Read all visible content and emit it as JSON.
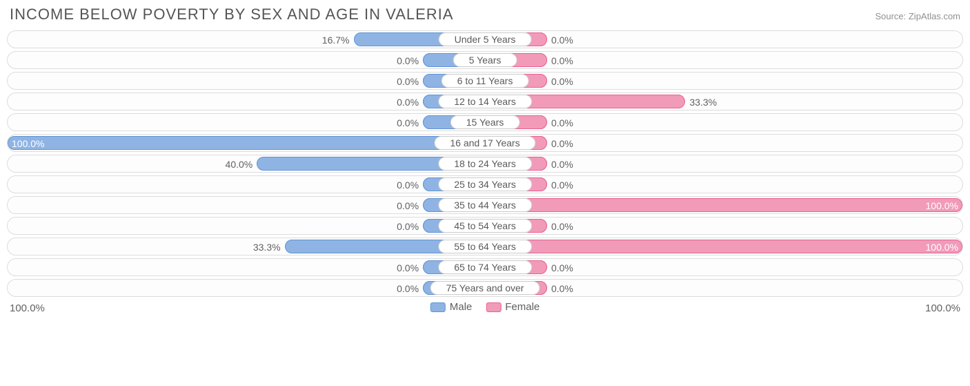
{
  "title": "INCOME BELOW POVERTY BY SEX AND AGE IN VALERIA",
  "source": "Source: ZipAtlas.com",
  "chart": {
    "type": "diverging-bar",
    "male_color": "#8fb4e3",
    "male_border": "#5f93d6",
    "female_color": "#f19bb9",
    "female_border": "#e86193",
    "track_border": "#dcdcdc",
    "track_bg": "#fdfdfd",
    "label_chip_bg": "#ffffff",
    "label_chip_border": "#cccccc",
    "text_color": "#606060",
    "base_pill_pct": 13,
    "axis_min_label": "100.0%",
    "axis_max_label": "100.0%",
    "categories": [
      {
        "label": "Under 5 Years",
        "male": 16.7,
        "female": 0.0
      },
      {
        "label": "5 Years",
        "male": 0.0,
        "female": 0.0
      },
      {
        "label": "6 to 11 Years",
        "male": 0.0,
        "female": 0.0
      },
      {
        "label": "12 to 14 Years",
        "male": 0.0,
        "female": 33.3
      },
      {
        "label": "15 Years",
        "male": 0.0,
        "female": 0.0
      },
      {
        "label": "16 and 17 Years",
        "male": 100.0,
        "female": 0.0
      },
      {
        "label": "18 to 24 Years",
        "male": 40.0,
        "female": 0.0
      },
      {
        "label": "25 to 34 Years",
        "male": 0.0,
        "female": 0.0
      },
      {
        "label": "35 to 44 Years",
        "male": 0.0,
        "female": 100.0
      },
      {
        "label": "45 to 54 Years",
        "male": 0.0,
        "female": 0.0
      },
      {
        "label": "55 to 64 Years",
        "male": 33.3,
        "female": 100.0
      },
      {
        "label": "65 to 74 Years",
        "male": 0.0,
        "female": 0.0
      },
      {
        "label": "75 Years and over",
        "male": 0.0,
        "female": 0.0
      }
    ],
    "legend": {
      "male_label": "Male",
      "female_label": "Female"
    }
  }
}
